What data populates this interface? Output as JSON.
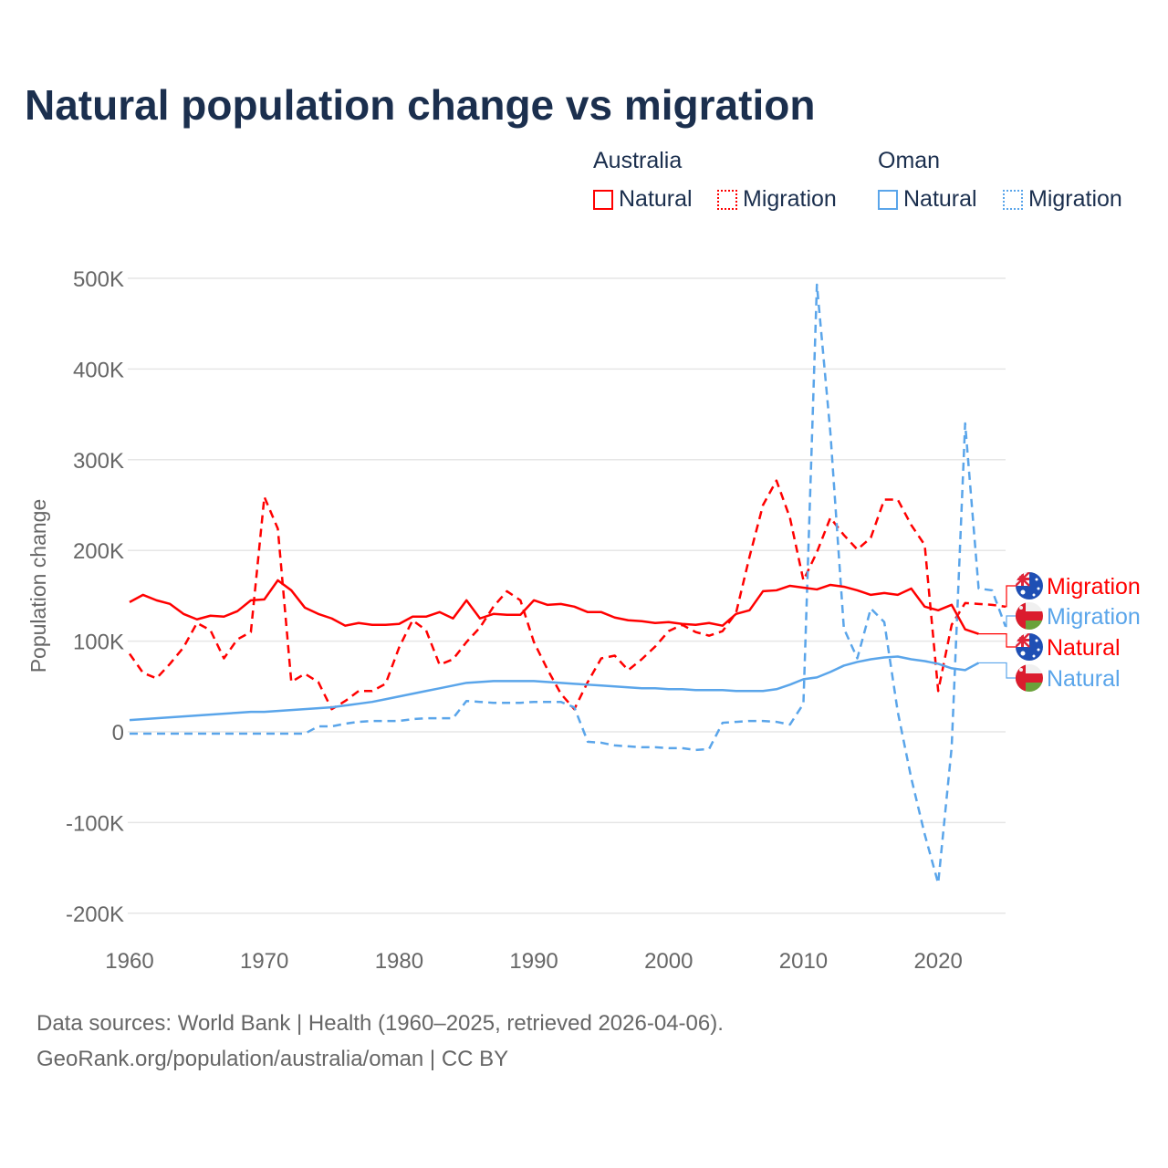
{
  "title": "Natural population change vs migration",
  "legend": {
    "groups": [
      {
        "name": "Australia",
        "items": [
          {
            "label": "Natural",
            "style": "solid",
            "color": "#ff0000"
          },
          {
            "label": "Migration",
            "style": "dotted",
            "color": "#ff0000"
          }
        ]
      },
      {
        "name": "Oman",
        "items": [
          {
            "label": "Natural",
            "style": "solid",
            "color": "#5aa5ea"
          },
          {
            "label": "Migration",
            "style": "dotted",
            "color": "#5aa5ea"
          }
        ]
      }
    ]
  },
  "footer": {
    "line1": "Data sources: World Bank | Health (1960–2025, retrieved 2026-04-06).",
    "line2": "GeoRank.org/population/australia/oman | CC BY"
  },
  "chart_data": {
    "type": "line",
    "title": "Natural population change vs migration",
    "xlabel": "",
    "ylabel": "Population change",
    "xlim": [
      1960,
      2025
    ],
    "ylim": [
      -200000,
      500000
    ],
    "grid": true,
    "x_ticks": [
      "1960",
      "1970",
      "1980",
      "1990",
      "2000",
      "2010",
      "2020"
    ],
    "y_ticks": [
      {
        "value": 500000,
        "label": "500K"
      },
      {
        "value": 400000,
        "label": "400K"
      },
      {
        "value": 300000,
        "label": "300K"
      },
      {
        "value": 200000,
        "label": "200K"
      },
      {
        "value": 100000,
        "label": "100K"
      },
      {
        "value": 0,
        "label": "0"
      },
      {
        "value": -100000,
        "label": "-100K"
      },
      {
        "value": -200000,
        "label": "-200K"
      }
    ],
    "units": "thousands",
    "series": [
      {
        "name": "Australia Migration",
        "end_label": "Migration",
        "country": "Australia",
        "color": "#ff0000",
        "dashed": true,
        "start": 1960,
        "values": [
          86,
          65,
          59,
          75,
          93,
          120,
          112,
          81,
          102,
          110,
          259,
          224,
          55,
          64,
          55,
          25,
          34,
          45,
          45,
          53,
          93,
          123,
          112,
          74,
          80,
          99,
          115,
          138,
          155,
          145,
          99,
          69,
          42,
          25,
          55,
          81,
          84,
          68,
          80,
          94,
          111,
          118,
          110,
          106,
          111,
          131,
          193,
          250,
          277,
          236,
          167,
          198,
          236,
          217,
          201,
          214,
          256,
          256,
          228,
          206,
          45,
          118,
          142,
          141,
          140,
          138
        ]
      },
      {
        "name": "Oman Migration",
        "end_label": "Migration",
        "country": "Oman",
        "color": "#5aa5ea",
        "dashed": true,
        "start": 1960,
        "values": [
          -2,
          -2,
          -2,
          -2,
          -2,
          -2,
          -2,
          -2,
          -2,
          -2,
          -2,
          -2,
          -2,
          -2,
          6,
          6,
          9,
          11,
          12,
          12,
          12,
          14,
          15,
          15,
          15,
          34,
          33,
          32,
          32,
          32,
          33,
          33,
          33,
          27,
          -11,
          -12,
          -15,
          -16,
          -17,
          -17,
          -18,
          -18,
          -20,
          -19,
          10,
          11,
          12,
          12,
          11,
          8,
          31,
          493,
          330,
          114,
          81,
          136,
          121,
          22,
          -51,
          -113,
          -167,
          -17,
          340,
          158,
          156,
          116
        ]
      },
      {
        "name": "Australia Natural",
        "end_label": "Natural",
        "country": "Australia",
        "color": "#ff0000",
        "dashed": false,
        "start": 1960,
        "values": [
          143,
          151,
          145,
          141,
          130,
          124,
          128,
          127,
          133,
          145,
          146,
          167,
          156,
          137,
          130,
          125,
          117,
          120,
          118,
          118,
          119,
          127,
          127,
          132,
          125,
          145,
          125,
          130,
          129,
          129,
          145,
          140,
          141,
          138,
          132,
          132,
          126,
          123,
          122,
          120,
          121,
          119,
          118,
          120,
          117,
          130,
          134,
          155,
          156,
          161,
          159,
          157,
          162,
          160,
          156,
          151,
          153,
          151,
          158,
          138,
          134,
          140,
          113,
          108
        ]
      },
      {
        "name": "Oman Natural",
        "end_label": "Natural",
        "country": "Oman",
        "color": "#5aa5ea",
        "dashed": false,
        "start": 1960,
        "values": [
          13,
          14,
          15,
          16,
          17,
          18,
          19,
          20,
          21,
          22,
          22,
          23,
          24,
          25,
          26,
          27,
          29,
          31,
          33,
          36,
          39,
          42,
          45,
          48,
          51,
          54,
          55,
          56,
          56,
          56,
          56,
          55,
          54,
          53,
          52,
          51,
          50,
          49,
          48,
          48,
          47,
          47,
          46,
          46,
          46,
          45,
          45,
          45,
          47,
          52,
          58,
          60,
          66,
          73,
          77,
          80,
          82,
          83,
          80,
          78,
          75,
          70,
          68,
          76
        ]
      }
    ]
  }
}
